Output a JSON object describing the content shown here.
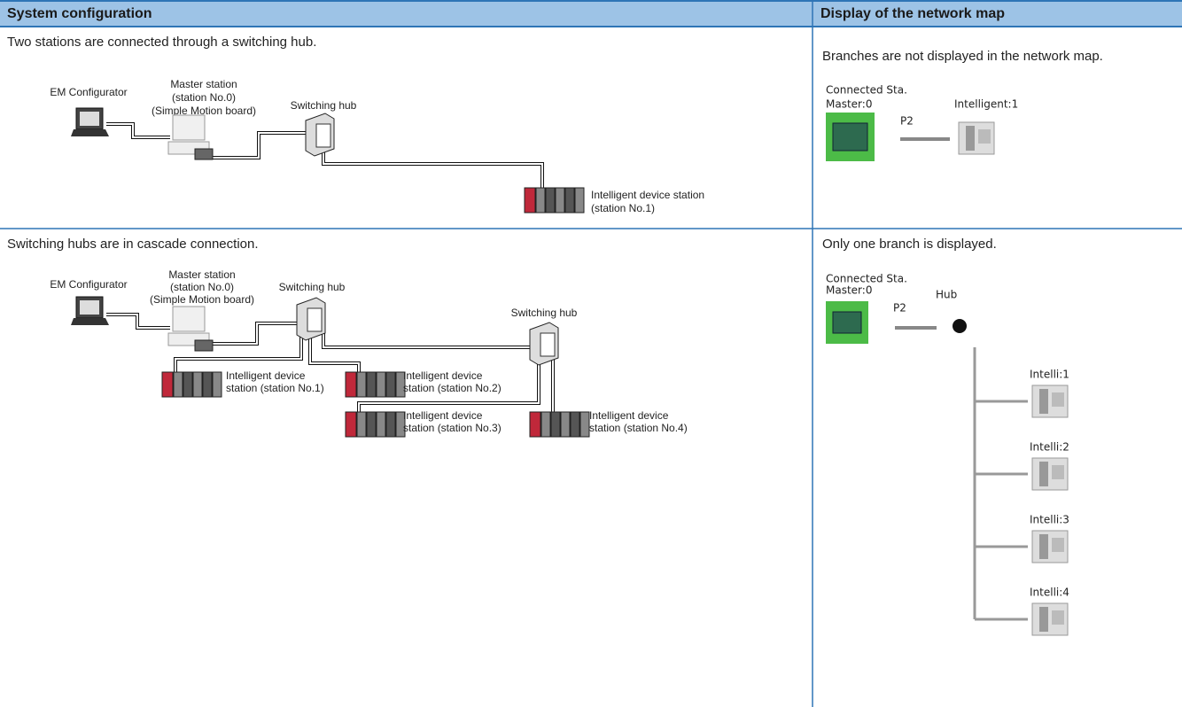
{
  "header": {
    "left": "System configuration",
    "right": "Display of the network map"
  },
  "rows": [
    {
      "description": "Two stations are connected through a switching hub.",
      "diagram": {
        "em_configurator": "EM Configurator",
        "master_station": [
          "Master station",
          "(station No.0)",
          "(Simple Motion board)"
        ],
        "switching_hubs": [
          "Switching hub"
        ],
        "stations": [
          [
            "Intelligent device station",
            "(station No.1)"
          ]
        ]
      },
      "map_description": "Branches are not displayed in the network map.",
      "map": {
        "connected": "Connected Sta.",
        "master": "Master:0",
        "port": "P2",
        "stations": [
          "Intelligent:1"
        ]
      }
    },
    {
      "description": "Switching hubs are in cascade connection.",
      "diagram": {
        "em_configurator": "EM Configurator",
        "master_station": [
          "Master station",
          "(station No.0)",
          "(Simple Motion board)"
        ],
        "switching_hubs": [
          "Switching hub",
          "Switching hub"
        ],
        "stations": [
          [
            "Intelligent device",
            "station (station No.1)"
          ],
          [
            "Intelligent device",
            "station (station No.2)"
          ],
          [
            "Intelligent device",
            "station (station No.3)"
          ],
          [
            "Intelligent device",
            "station (station No.4)"
          ]
        ]
      },
      "map_description": "Only one branch is displayed.",
      "map": {
        "connected": "Connected Sta.",
        "master": "Master:0",
        "port": "P2",
        "hub": "Hub",
        "stations": [
          "Intelli:1",
          "Intelli:2",
          "Intelli:3",
          "Intelli:4"
        ]
      }
    }
  ]
}
